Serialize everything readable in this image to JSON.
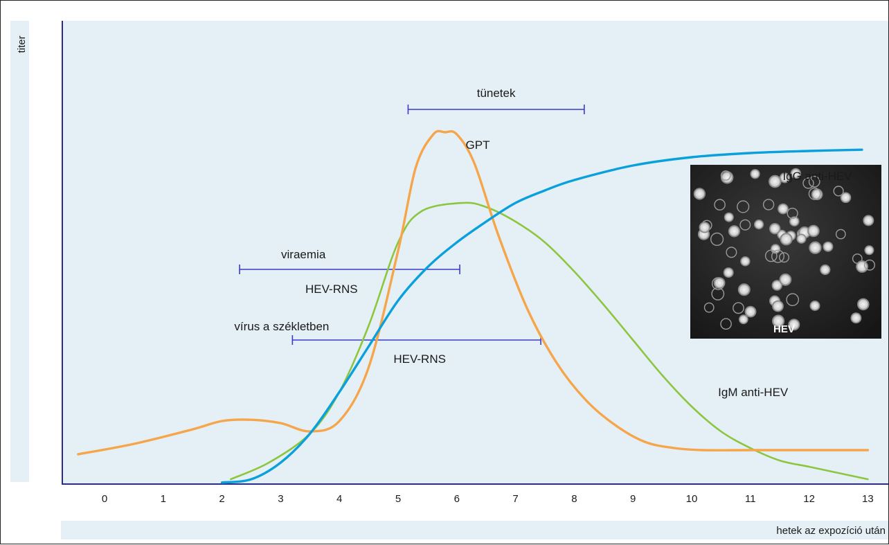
{
  "chart_data": {
    "type": "line",
    "ylabel": "titer",
    "xlabel": "hetek az expozíció után",
    "x_ticks": [
      "0",
      "1",
      "2",
      "3",
      "4",
      "5",
      "6",
      "7",
      "8",
      "9",
      "10",
      "11",
      "12",
      "13"
    ],
    "xlim": [
      -0.7,
      13.4
    ],
    "ylim": [
      0,
      100
    ],
    "grid": false,
    "colors": {
      "background": "#e5eff6",
      "axis": "#2b2b8c",
      "gpt": "#f5a54a",
      "igm": "#8cc63f",
      "igg": "#0aa0dc",
      "interval": "#3a3acc"
    },
    "series": [
      {
        "name": "GPT",
        "color": "#f5a54a",
        "points": [
          [
            -0.45,
            7.0
          ],
          [
            0.5,
            9.5
          ],
          [
            1.5,
            13.0
          ],
          [
            2.0,
            15.0
          ],
          [
            2.5,
            15.3
          ],
          [
            3.0,
            14.5
          ],
          [
            3.5,
            12.5
          ],
          [
            4.0,
            15.0
          ],
          [
            4.5,
            28.0
          ],
          [
            5.0,
            56.0
          ],
          [
            5.3,
            76.0
          ],
          [
            5.6,
            84.0
          ],
          [
            5.8,
            84.5
          ],
          [
            6.0,
            84.0
          ],
          [
            6.3,
            77.0
          ],
          [
            6.7,
            60.0
          ],
          [
            7.2,
            42.0
          ],
          [
            7.7,
            29.0
          ],
          [
            8.2,
            20.0
          ],
          [
            8.7,
            14.0
          ],
          [
            9.2,
            10.0
          ],
          [
            9.7,
            8.5
          ],
          [
            10.2,
            8.0
          ],
          [
            11.0,
            8.0
          ],
          [
            13.0,
            8.0
          ]
        ]
      },
      {
        "name": "IgM anti-HEV",
        "color": "#8cc63f",
        "points": [
          [
            2.15,
            1.0
          ],
          [
            2.8,
            5.0
          ],
          [
            3.5,
            12.0
          ],
          [
            4.0,
            22.0
          ],
          [
            4.5,
            38.0
          ],
          [
            5.0,
            58.0
          ],
          [
            5.4,
            65.5
          ],
          [
            6.1,
            67.5
          ],
          [
            6.5,
            66.5
          ],
          [
            7.0,
            63.0
          ],
          [
            7.5,
            58.0
          ],
          [
            8.0,
            51.0
          ],
          [
            8.5,
            43.0
          ],
          [
            9.0,
            34.5
          ],
          [
            9.5,
            26.0
          ],
          [
            10.0,
            18.5
          ],
          [
            10.5,
            12.5
          ],
          [
            11.0,
            8.5
          ],
          [
            11.5,
            5.5
          ],
          [
            12.0,
            4.0
          ],
          [
            12.5,
            2.5
          ],
          [
            13.0,
            1.0
          ]
        ]
      },
      {
        "name": "IgG anti-HEV",
        "color": "#0aa0dc",
        "points": [
          [
            2.0,
            0.2
          ],
          [
            2.5,
            1.0
          ],
          [
            3.0,
            5.0
          ],
          [
            3.5,
            12.0
          ],
          [
            4.0,
            22.0
          ],
          [
            4.5,
            33.0
          ],
          [
            5.0,
            44.0
          ],
          [
            5.5,
            52.0
          ],
          [
            6.0,
            58.0
          ],
          [
            6.5,
            63.0
          ],
          [
            7.0,
            67.5
          ],
          [
            7.5,
            70.5
          ],
          [
            8.0,
            73.0
          ],
          [
            9.0,
            76.5
          ],
          [
            10.0,
            78.5
          ],
          [
            11.0,
            79.5
          ],
          [
            12.0,
            80.0
          ],
          [
            12.9,
            80.3
          ]
        ]
      }
    ],
    "intervals": [
      {
        "label": "tünetek",
        "sub_label": "",
        "start": 5.17,
        "end": 8.17,
        "level": 90.0
      },
      {
        "label": "viraemia",
        "sub_label": "HEV-RNS",
        "start": 2.3,
        "end": 6.05,
        "level": 51.5
      },
      {
        "label": "vírus a székletben",
        "sub_label": "HEV-RNS",
        "start": 3.2,
        "end": 7.43,
        "level": 34.5
      }
    ],
    "annotations": [
      {
        "text": "GPT",
        "x": 6.15,
        "y": 80.5,
        "series": "GPT"
      },
      {
        "text": "IgG anti-HEV",
        "x": 11.55,
        "y": 73.0,
        "series": "IgG anti-HEV"
      },
      {
        "text": "IgM anti-HEV",
        "x": 10.45,
        "y": 21.0,
        "series": "IgM anti-HEV"
      }
    ],
    "inset_label": "HEV"
  }
}
